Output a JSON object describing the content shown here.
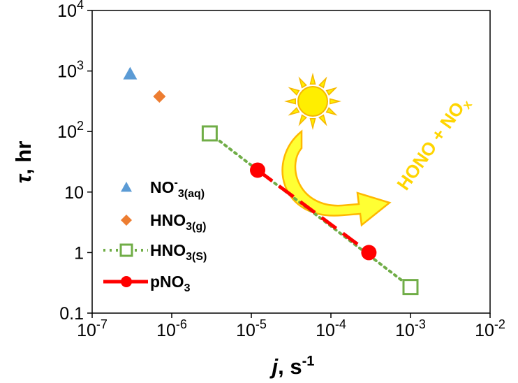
{
  "chart_data": {
    "type": "scatter",
    "xlabel": {
      "var": "j",
      "unit": ", s",
      "exp": "-1"
    },
    "ylabel": {
      "var": "τ",
      "unit": ", hr"
    },
    "x_scale": "log",
    "y_scale": "log",
    "xlim": [
      1e-07,
      0.01
    ],
    "ylim": [
      0.1,
      10000
    ],
    "grid": false,
    "legend_position": "left-center",
    "x_ticks": [
      {
        "base": "10",
        "exp": "-7"
      },
      {
        "base": "10",
        "exp": "-6"
      },
      {
        "base": "10",
        "exp": "-5"
      },
      {
        "base": "10",
        "exp": "-4"
      },
      {
        "base": "10",
        "exp": "-3"
      },
      {
        "base": "10",
        "exp": "-2"
      }
    ],
    "y_ticks": [
      {
        "base": "10",
        "exp": "4"
      },
      {
        "base": "10",
        "exp": "3"
      },
      {
        "base": "10",
        "exp": "2"
      },
      {
        "base": "10",
        "exp": ""
      },
      {
        "base": "1",
        "exp": ""
      },
      {
        "base": "0.1",
        "exp": ""
      }
    ],
    "series": [
      {
        "name": {
          "main": "NO",
          "sub": "3",
          "sup": "-",
          "sub2": "(aq)"
        },
        "marker": "triangle",
        "line": "none",
        "color": "#5b9bd5",
        "points": [
          {
            "x": 3e-07,
            "y": 900
          }
        ]
      },
      {
        "name": {
          "main": "HNO",
          "sub": "3(g)",
          "sup": "",
          "sub2": ""
        },
        "marker": "diamond",
        "line": "none",
        "color": "#ed7d31",
        "points": [
          {
            "x": 7e-07,
            "y": 380
          }
        ]
      },
      {
        "name": {
          "main": "HNO",
          "sub": "3(S)",
          "sup": "",
          "sub2": ""
        },
        "marker": "open-square",
        "line": "dotted",
        "color": "#70ad47",
        "points": [
          {
            "x": 3e-06,
            "y": 93
          },
          {
            "x": 0.001,
            "y": 0.27
          }
        ]
      },
      {
        "name": {
          "main": "pNO",
          "sub": "3",
          "sup": "",
          "sub2": ""
        },
        "marker": "circle",
        "line": "dashed",
        "color": "#ff0000",
        "points": [
          {
            "x": 1.2e-05,
            "y": 23
          },
          {
            "x": 0.0003,
            "y": 1
          }
        ]
      }
    ],
    "annotation": {
      "main": "HONO + NO",
      "sub": "x",
      "color": "#ffd500"
    },
    "colors": {
      "sun": "#ffee00",
      "sun_outline": "#f5b800",
      "arrow_fill": "#ffff33",
      "arrow_outline": "#ffb800"
    }
  }
}
